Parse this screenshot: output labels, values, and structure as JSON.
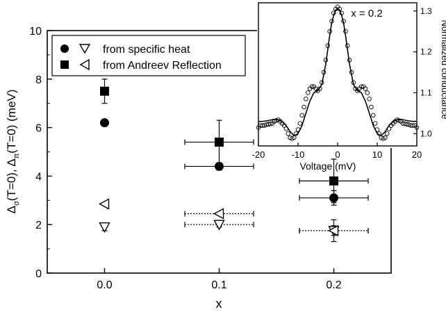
{
  "chart_data": [
    {
      "type": "scatter",
      "xlabel": "x",
      "ylabel": "Δσ(T=0), Δπ(T=0) (meV)",
      "ylabel_parts": {
        "d1": "Δ",
        "sub1": "σ",
        "mid": "(T=0), ",
        "d2": "Δ",
        "sub2": "π",
        "end": "(T=0) (meV)"
      },
      "xlim": [
        -0.05,
        0.25
      ],
      "ylim": [
        0,
        10
      ],
      "xticks": [
        "0.0",
        "0.1",
        "0.2"
      ],
      "xtick_values": [
        0.0,
        0.1,
        0.2
      ],
      "yticks": [
        "0",
        "2",
        "4",
        "6",
        "8",
        "10"
      ],
      "ytick_values": [
        0,
        2,
        4,
        6,
        8,
        10
      ],
      "legend": {
        "placement": "top-left",
        "entries": [
          {
            "text": "from specific heat"
          },
          {
            "text": "from Andreev Reflection"
          }
        ]
      },
      "series": [
        {
          "marker": "filled-circle",
          "source": "from specific heat",
          "points": [
            {
              "x": 0.0,
              "y": 6.2,
              "xerr": 0,
              "yerr": 0
            },
            {
              "x": 0.1,
              "y": 4.4,
              "xerr": 0.03,
              "yerr": 0.15
            },
            {
              "x": 0.2,
              "y": 3.1,
              "xerr": 0.03,
              "yerr": 0.3
            }
          ]
        },
        {
          "marker": "open-triangle-down",
          "source": "from specific heat",
          "points": [
            {
              "x": 0.0,
              "y": 1.9,
              "xerr": 0,
              "yerr": 0.15
            },
            {
              "x": 0.1,
              "y": 2.0,
              "xerr": 0.03,
              "yerr": 0.1
            },
            {
              "x": 0.2,
              "y": 1.75,
              "xerr": 0.03,
              "yerr": 0.2
            }
          ]
        },
        {
          "marker": "filled-square",
          "source": "from Andreev Reflection",
          "points": [
            {
              "x": 0.0,
              "y": 7.5,
              "xerr": 0,
              "yerr": 0.5
            },
            {
              "x": 0.1,
              "y": 5.4,
              "xerr": 0.03,
              "yerr": 0.9
            },
            {
              "x": 0.2,
              "y": 3.8,
              "xerr": 0.03,
              "yerr": 0.9
            }
          ]
        },
        {
          "marker": "open-triangle-left",
          "source": "from Andreev Reflection",
          "points": [
            {
              "x": 0.0,
              "y": 2.85,
              "xerr": 0,
              "yerr": 0
            },
            {
              "x": 0.1,
              "y": 2.45,
              "xerr": 0.03,
              "yerr": 0
            },
            {
              "x": 0.2,
              "y": 1.75,
              "xerr": 0.03,
              "yerr": 0.45
            }
          ]
        }
      ]
    },
    {
      "type": "line",
      "annotation": "x = 0.2",
      "xlabel": "Voltage (mV)",
      "ylabel": "Normalized conductance",
      "xlim": [
        -20,
        20
      ],
      "ylim": [
        0.97,
        1.32
      ],
      "xticks": [
        "-20",
        "-10",
        "0",
        "10",
        "20"
      ],
      "xtick_values": [
        -20,
        -10,
        0,
        10,
        20
      ],
      "yticks": [
        "1.0",
        "1.1",
        "1.2",
        "1.3"
      ],
      "ytick_values": [
        1.0,
        1.1,
        1.2,
        1.3
      ],
      "y_axis_side": "right",
      "series": [
        {
          "style": "open-circles",
          "role": "measurement",
          "x": [
            -20,
            -19.5,
            -19,
            -18.5,
            -18,
            -17.5,
            -17,
            -16.5,
            -16,
            -15.5,
            -15,
            -14.5,
            -14,
            -13.5,
            -13,
            -12.5,
            -12,
            -11.5,
            -11,
            -10.5,
            -10,
            -9.5,
            -9,
            -8.5,
            -8,
            -7.5,
            -7,
            -6.5,
            -6,
            -5.5,
            -5,
            -4.5,
            -4,
            -3.5,
            -3,
            -2.5,
            -2,
            -1.5,
            -1,
            -0.5,
            0,
            0.5,
            1,
            1.5,
            2,
            2.5,
            3,
            3.5,
            4,
            4.5,
            5,
            5.5,
            6,
            6.5,
            7,
            7.5,
            8,
            8.5,
            9,
            9.5,
            10,
            10.5,
            11,
            11.5,
            12,
            12.5,
            13,
            13.5,
            14,
            14.5,
            15,
            15.5,
            16,
            16.5,
            17,
            17.5,
            18,
            18.5,
            19,
            19.5,
            20
          ],
          "y": [
            1.015,
            1.02,
            1.02,
            1.02,
            1.022,
            1.023,
            1.024,
            1.025,
            1.03,
            1.032,
            1.034,
            1.03,
            1.025,
            1.02,
            1.012,
            1.0,
            0.99,
            0.988,
            0.99,
            1.0,
            1.01,
            1.025,
            1.045,
            1.065,
            1.085,
            1.1,
            1.11,
            1.115,
            1.115,
            1.11,
            1.105,
            1.11,
            1.125,
            1.15,
            1.18,
            1.215,
            1.25,
            1.275,
            1.295,
            1.305,
            1.31,
            1.305,
            1.295,
            1.275,
            1.25,
            1.215,
            1.18,
            1.15,
            1.125,
            1.11,
            1.105,
            1.11,
            1.115,
            1.115,
            1.11,
            1.1,
            1.085,
            1.065,
            1.045,
            1.025,
            1.01,
            1.0,
            0.99,
            0.988,
            0.99,
            1.0,
            1.012,
            1.02,
            1.025,
            1.03,
            1.034,
            1.032,
            1.03,
            1.025,
            1.024,
            1.023,
            1.022,
            1.02,
            1.02,
            1.02,
            1.015
          ]
        },
        {
          "style": "solid-line",
          "role": "fit",
          "x": [
            -20,
            -19,
            -18,
            -17,
            -16,
            -15,
            -14,
            -13,
            -12,
            -11,
            -10,
            -9,
            -8,
            -7,
            -6,
            -5,
            -4,
            -3,
            -2,
            -1.5,
            -1,
            -0.5,
            0,
            0.5,
            1,
            1.5,
            2,
            3,
            4,
            5,
            6,
            7,
            8,
            9,
            10,
            11,
            12,
            13,
            14,
            15,
            16,
            17,
            18,
            19,
            20
          ],
          "y": [
            1.03,
            1.03,
            1.031,
            1.033,
            1.035,
            1.034,
            1.03,
            1.02,
            1.005,
            0.995,
            1.0,
            1.02,
            1.05,
            1.08,
            1.1,
            1.105,
            1.12,
            1.17,
            1.24,
            1.27,
            1.29,
            1.302,
            1.305,
            1.302,
            1.29,
            1.27,
            1.24,
            1.17,
            1.12,
            1.105,
            1.1,
            1.08,
            1.05,
            1.02,
            1.0,
            0.995,
            1.005,
            1.02,
            1.03,
            1.034,
            1.035,
            1.033,
            1.031,
            1.03,
            1.03
          ]
        }
      ]
    }
  ]
}
